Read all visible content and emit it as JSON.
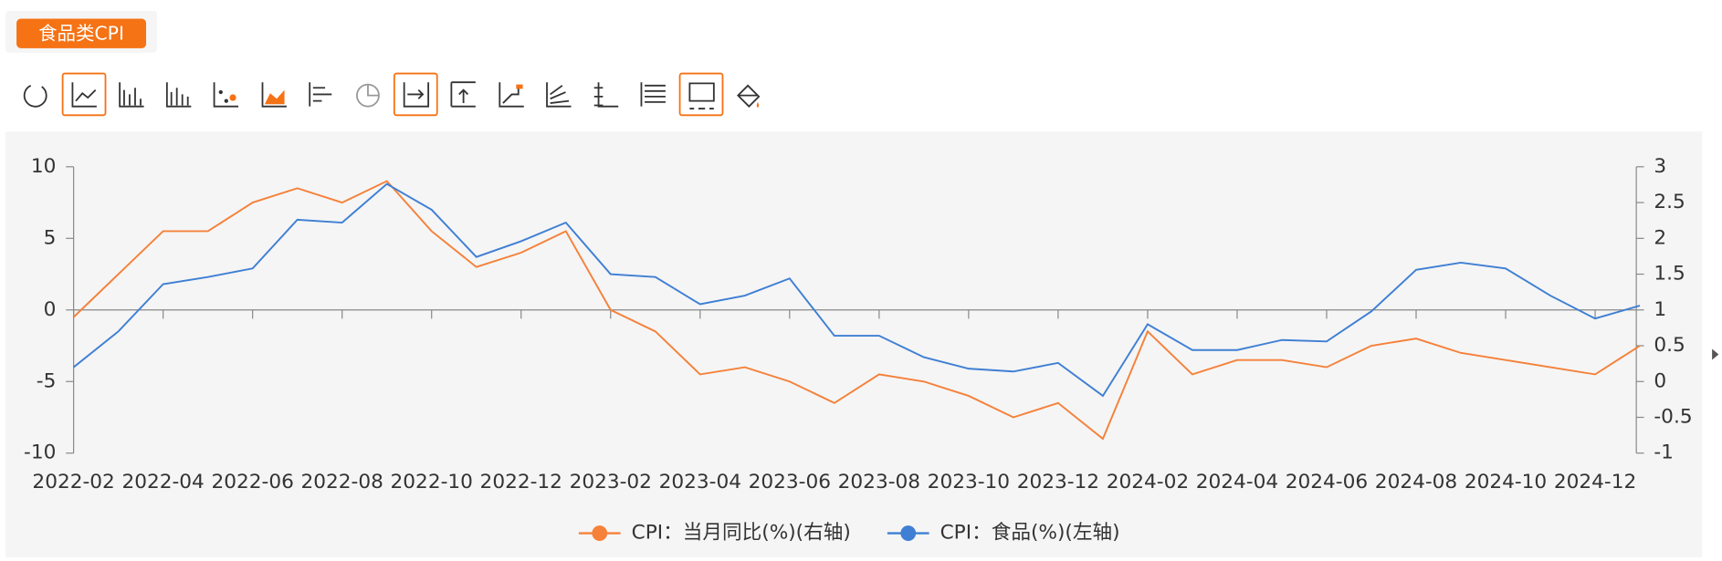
{
  "chart_data": {
    "type": "line",
    "tag": "食品类CPI",
    "categories": [
      "2022-02",
      null,
      "2022-04",
      null,
      "2022-06",
      null,
      "2022-08",
      null,
      "2022-10",
      null,
      "2022-12",
      null,
      "2023-02",
      null,
      "2023-04",
      null,
      "2023-06",
      null,
      "2023-08",
      null,
      "2023-10",
      null,
      "2023-12",
      null,
      "2024-02",
      null,
      "2024-04",
      null,
      "2024-06",
      null,
      "2024-08",
      null,
      "2024-10",
      null,
      "2024-12",
      null
    ],
    "series": [
      {
        "name": "CPI：当月同比(%)(右轴)",
        "color": "#f5813a",
        "axis": "y2",
        "values": [
          0.9,
          1.5,
          2.1,
          2.1,
          2.5,
          2.7,
          2.5,
          2.8,
          2.1,
          1.6,
          1.8,
          2.1,
          1.0,
          0.7,
          0.1,
          0.2,
          0.0,
          -0.3,
          0.1,
          0.0,
          -0.2,
          -0.5,
          -0.3,
          -0.8,
          0.7,
          0.1,
          0.3,
          0.3,
          0.2,
          0.5,
          0.6,
          0.4,
          0.3,
          0.2,
          0.1,
          0.5
        ]
      },
      {
        "name": "CPI：食品(%)(左轴)",
        "color": "#3f7fd4",
        "values": [
          -4.0,
          -1.5,
          1.8,
          2.3,
          2.9,
          6.3,
          6.1,
          8.8,
          7.0,
          3.7,
          4.8,
          6.1,
          2.5,
          2.3,
          0.4,
          1.0,
          2.2,
          -1.8,
          -1.8,
          -3.3,
          -4.1,
          -4.3,
          -3.7,
          -6.0,
          -1.0,
          -2.8,
          -2.8,
          -2.1,
          -2.2,
          -0.1,
          2.8,
          3.3,
          2.9,
          1.0,
          -0.6,
          0.3
        ]
      }
    ],
    "ylim": [
      -10,
      10
    ],
    "yticks": [
      -10,
      -5,
      0,
      5,
      10
    ],
    "y2lim": [
      -1,
      3
    ],
    "y2ticks": [
      -1,
      -0.5,
      0,
      0.5,
      1,
      1.5,
      2,
      2.5,
      3
    ]
  }
}
